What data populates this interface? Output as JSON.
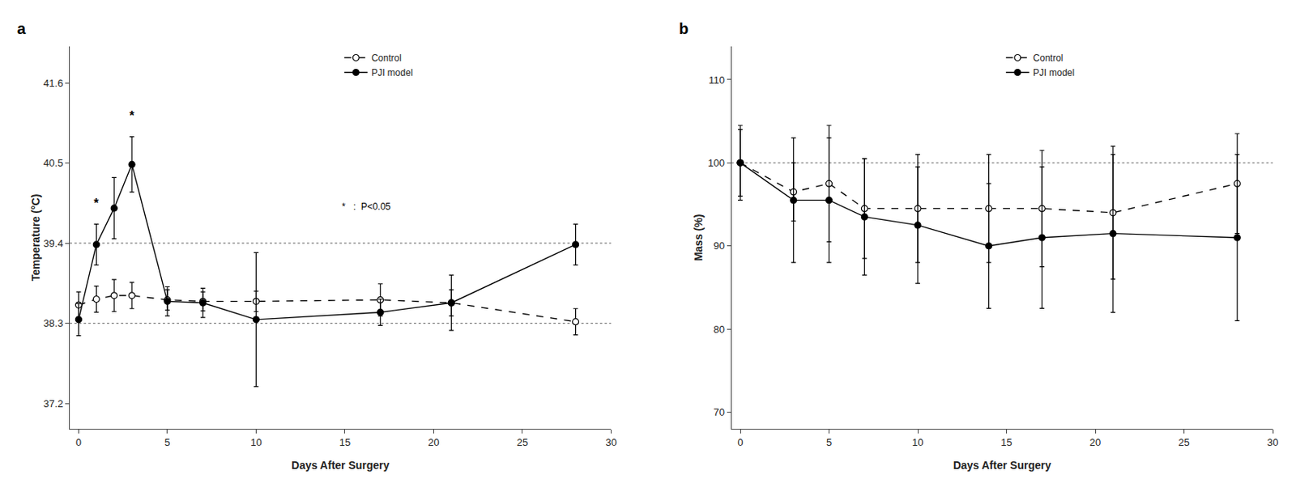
{
  "chart_data": [
    {
      "type": "line",
      "title": "a",
      "xlabel": "Days After Surgery",
      "ylabel": "Temperature (°C)",
      "xlim": [
        -0.5,
        30
      ],
      "ylim": [
        36.85,
        42.1
      ],
      "xticks": [
        0,
        5,
        10,
        15,
        20,
        25,
        30
      ],
      "yticks": [
        37.2,
        38.3,
        39.4,
        40.5,
        41.6
      ],
      "grid": false,
      "legend": "upper center",
      "reference_lines": [
        38.3,
        39.4
      ],
      "series": [
        {
          "name": "Control",
          "color": "black",
          "marker": "open_circle",
          "line_style": "dashed",
          "x": [
            0,
            1,
            2,
            3,
            5,
            7,
            10,
            17,
            21,
            28
          ],
          "values": [
            38.55,
            38.63,
            38.68,
            38.68,
            38.62,
            38.6,
            38.6,
            38.62,
            38.58,
            38.32
          ],
          "errors": [
            0.18,
            0.18,
            0.22,
            0.18,
            0.14,
            0.13,
            0.14,
            0.22,
            0.18,
            0.18
          ]
        },
        {
          "name": "PJI model",
          "color": "black",
          "marker": "circle",
          "line_style": "solid",
          "x": [
            0,
            1,
            2,
            3,
            5,
            7,
            10,
            17,
            21,
            28
          ],
          "values": [
            38.35,
            39.38,
            39.88,
            40.48,
            38.6,
            38.58,
            38.35,
            38.45,
            38.58,
            39.38
          ],
          "errors": [
            0.22,
            0.28,
            0.42,
            0.38,
            0.2,
            0.2,
            0.92,
            0.18,
            0.38,
            0.28
          ]
        }
      ],
      "annotations": [
        {
          "text": "*",
          "x": 1,
          "y": 39.84
        },
        {
          "text": "*",
          "x": 3,
          "y": 41.04
        },
        {
          "text": "*   :  P<0.05"
        }
      ]
    },
    {
      "type": "line",
      "title": "b",
      "xlabel": "Days After Surgery",
      "ylabel": "Mass (%)",
      "xlim": [
        -0.5,
        30
      ],
      "ylim": [
        68,
        114
      ],
      "xticks": [
        0,
        5,
        10,
        15,
        20,
        25,
        30
      ],
      "yticks": [
        70,
        80,
        90,
        100,
        110
      ],
      "grid": false,
      "legend": "upper center",
      "reference_lines": [
        100
      ],
      "series": [
        {
          "name": "Control",
          "color": "black",
          "marker": "open_circle",
          "line_style": "dashed",
          "x": [
            0,
            3,
            5,
            7,
            10,
            14,
            17,
            21,
            28
          ],
          "values": [
            100.0,
            96.5,
            97.5,
            94.5,
            94.5,
            94.5,
            94.5,
            94.0,
            97.5
          ],
          "errors": [
            4.5,
            3.5,
            7.0,
            6.0,
            6.5,
            6.5,
            7.0,
            8.0,
            6.0
          ]
        },
        {
          "name": "PJI model",
          "color": "black",
          "marker": "circle",
          "line_style": "solid",
          "x": [
            0,
            3,
            5,
            7,
            10,
            14,
            17,
            21,
            28
          ],
          "values": [
            100.0,
            95.5,
            95.5,
            93.5,
            92.5,
            90.0,
            91.0,
            91.5,
            91.0
          ],
          "errors": [
            4.0,
            7.5,
            7.5,
            7.0,
            7.0,
            7.5,
            8.5,
            9.5,
            10.0
          ]
        }
      ]
    }
  ]
}
